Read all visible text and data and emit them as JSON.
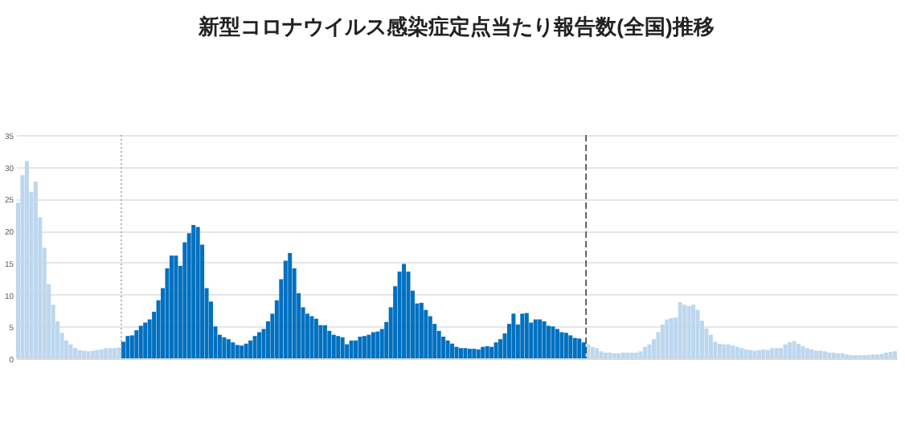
{
  "chart_data": {
    "type": "bar",
    "title": "新型コロナウイルス感染症定点当たり報告数(全国)推移",
    "categories": [
      null,
      null,
      null,
      null,
      null,
      null,
      null,
      null,
      null,
      null,
      null,
      null,
      null,
      null,
      null,
      null,
      null,
      null,
      null,
      null,
      null,
      null,
      null,
      null,
      null,
      null,
      null,
      null,
      null,
      null,
      null,
      null,
      null,
      null,
      null,
      null,
      null,
      null,
      null,
      null,
      null,
      null,
      null,
      null,
      null,
      null,
      null,
      null,
      null,
      null,
      null,
      null,
      null,
      null,
      null,
      null,
      null,
      null,
      null,
      null,
      null,
      null,
      null,
      null,
      null,
      null,
      null,
      null,
      null,
      null,
      null,
      null,
      null,
      null,
      null,
      null,
      null,
      null,
      null,
      null,
      null,
      null,
      null,
      null,
      null,
      null,
      null,
      null,
      null,
      null,
      null,
      null,
      null,
      null,
      null,
      null,
      null,
      null,
      null,
      null,
      null,
      null,
      null,
      null,
      null,
      null,
      null,
      null,
      null,
      null,
      null,
      null,
      null,
      null,
      null,
      null,
      null,
      null,
      null,
      null,
      null,
      null,
      null,
      null,
      null,
      null,
      null,
      null,
      null,
      null,
      null,
      null,
      null,
      null,
      null,
      null,
      null,
      null,
      null,
      null,
      null,
      null,
      null,
      null,
      null,
      null,
      null,
      null,
      null,
      null,
      null,
      null,
      null,
      null,
      null,
      null,
      null,
      null,
      null,
      null,
      null,
      null,
      null,
      null,
      null,
      null,
      null,
      null,
      null,
      null,
      null,
      null,
      null,
      null,
      null,
      null,
      null,
      null,
      null,
      null,
      null,
      null,
      null,
      null,
      null,
      null,
      null,
      null,
      null,
      null,
      null,
      null,
      null,
      null,
      null,
      null,
      null,
      null,
      null,
      null,
      null
    ],
    "values": [
      24.4,
      28.7,
      30.9,
      26.1,
      27.7,
      22.1,
      17.3,
      11.6,
      8.4,
      5.8,
      4.0,
      2.8,
      2.2,
      1.6,
      1.3,
      1.2,
      1.1,
      1.2,
      1.3,
      1.4,
      1.6,
      1.6,
      1.6,
      1.7,
      2.6,
      3.5,
      3.6,
      4.4,
      5.1,
      5.6,
      6.1,
      7.3,
      9.1,
      11.0,
      14.1,
      16.1,
      16.1,
      14.5,
      18.2,
      19.6,
      20.9,
      20.6,
      17.8,
      11.0,
      8.9,
      5.0,
      3.7,
      3.3,
      3.0,
      2.5,
      2.1,
      2.0,
      2.3,
      2.8,
      3.5,
      4.1,
      4.6,
      5.8,
      7.0,
      9.1,
      12.4,
      15.3,
      16.5,
      14.1,
      10.2,
      8.0,
      7.0,
      6.6,
      6.2,
      5.2,
      5.2,
      4.3,
      3.7,
      3.5,
      3.3,
      2.2,
      2.8,
      2.8,
      3.4,
      3.5,
      3.7,
      4.1,
      4.2,
      4.6,
      5.7,
      8.0,
      11.3,
      13.6,
      14.8,
      13.6,
      10.6,
      8.6,
      8.7,
      7.6,
      6.6,
      5.4,
      4.3,
      3.4,
      2.8,
      2.3,
      1.8,
      1.6,
      1.6,
      1.5,
      1.5,
      1.4,
      1.8,
      1.9,
      1.8,
      2.5,
      3.0,
      3.9,
      5.4,
      7.0,
      5.3,
      7.0,
      7.1,
      5.6,
      6.1,
      6.1,
      5.8,
      5.1,
      5.0,
      4.6,
      4.1,
      4.0,
      3.6,
      3.2,
      3.1,
      2.5,
      2.2,
      1.8,
      1.6,
      1.1,
      0.9,
      0.9,
      0.8,
      0.8,
      0.9,
      0.9,
      0.9,
      0.9,
      1.1,
      1.8,
      2.2,
      3.0,
      4.1,
      5.3,
      6.1,
      6.3,
      6.4,
      8.8,
      8.4,
      8.2,
      8.4,
      7.6,
      5.9,
      4.7,
      3.7,
      2.6,
      2.3,
      2.2,
      2.2,
      2.0,
      1.8,
      1.6,
      1.4,
      1.3,
      1.2,
      1.3,
      1.4,
      1.3,
      1.6,
      1.6,
      1.6,
      2.2,
      2.5,
      2.7,
      2.3,
      1.9,
      1.6,
      1.4,
      1.2,
      1.2,
      1.1,
      0.9,
      0.9,
      0.8,
      0.8,
      0.6,
      0.5,
      0.5,
      0.5,
      0.5,
      0.5,
      0.6,
      0.6,
      0.7,
      0.9,
      1.0,
      1.1
    ],
    "colors": [
      "#bdd7ee",
      "#bdd7ee",
      "#bdd7ee",
      "#bdd7ee",
      "#bdd7ee",
      "#bdd7ee",
      "#bdd7ee",
      "#bdd7ee",
      "#bdd7ee",
      "#bdd7ee",
      "#bdd7ee",
      "#bdd7ee",
      "#bdd7ee",
      "#bdd7ee",
      "#bdd7ee",
      "#bdd7ee",
      "#bdd7ee",
      "#bdd7ee",
      "#bdd7ee",
      "#bdd7ee",
      "#bdd7ee",
      "#bdd7ee",
      "#bdd7ee",
      "#bdd7ee",
      "#0070c0",
      "#0070c0",
      "#0070c0",
      "#0070c0",
      "#0070c0",
      "#0070c0",
      "#0070c0",
      "#0070c0",
      "#0070c0",
      "#0070c0",
      "#0070c0",
      "#0070c0",
      "#0070c0",
      "#0070c0",
      "#0070c0",
      "#0070c0",
      "#0070c0",
      "#0070c0",
      "#0070c0",
      "#0070c0",
      "#0070c0",
      "#0070c0",
      "#0070c0",
      "#0070c0",
      "#0070c0",
      "#0070c0",
      "#0070c0",
      "#0070c0",
      "#0070c0",
      "#0070c0",
      "#0070c0",
      "#0070c0",
      "#0070c0",
      "#0070c0",
      "#0070c0",
      "#0070c0",
      "#0070c0",
      "#0070c0",
      "#0070c0",
      "#0070c0",
      "#0070c0",
      "#0070c0",
      "#0070c0",
      "#0070c0",
      "#0070c0",
      "#0070c0",
      "#0070c0",
      "#0070c0",
      "#0070c0",
      "#0070c0",
      "#0070c0",
      "#0070c0",
      "#0070c0",
      "#0070c0",
      "#0070c0",
      "#0070c0",
      "#0070c0",
      "#0070c0",
      "#0070c0",
      "#0070c0",
      "#0070c0",
      "#0070c0",
      "#0070c0",
      "#0070c0",
      "#0070c0",
      "#0070c0",
      "#0070c0",
      "#0070c0",
      "#0070c0",
      "#0070c0",
      "#0070c0",
      "#0070c0",
      "#0070c0",
      "#0070c0",
      "#0070c0",
      "#0070c0",
      "#0070c0",
      "#0070c0",
      "#0070c0",
      "#0070c0",
      "#0070c0",
      "#0070c0",
      "#0070c0",
      "#0070c0",
      "#0070c0",
      "#0070c0",
      "#0070c0",
      "#0070c0",
      "#0070c0",
      "#0070c0",
      "#0070c0",
      "#0070c0",
      "#0070c0",
      "#0070c0",
      "#0070c0",
      "#0070c0",
      "#0070c0",
      "#0070c0",
      "#0070c0",
      "#0070c0",
      "#0070c0",
      "#0070c0",
      "#0070c0",
      "#0070c0",
      "#0070c0",
      "#0070c0",
      "#bdd7ee",
      "#bdd7ee",
      "#bdd7ee",
      "#bdd7ee",
      "#bdd7ee",
      "#bdd7ee",
      "#bdd7ee",
      "#bdd7ee",
      "#bdd7ee",
      "#bdd7ee",
      "#bdd7ee",
      "#bdd7ee",
      "#bdd7ee",
      "#bdd7ee",
      "#bdd7ee",
      "#bdd7ee",
      "#bdd7ee",
      "#bdd7ee",
      "#bdd7ee",
      "#bdd7ee",
      "#bdd7ee",
      "#bdd7ee",
      "#bdd7ee",
      "#bdd7ee",
      "#bdd7ee",
      "#bdd7ee",
      "#bdd7ee",
      "#bdd7ee",
      "#bdd7ee",
      "#bdd7ee",
      "#bdd7ee",
      "#bdd7ee",
      "#bdd7ee",
      "#bdd7ee",
      "#bdd7ee",
      "#bdd7ee",
      "#bdd7ee",
      "#bdd7ee",
      "#bdd7ee",
      "#bdd7ee",
      "#bdd7ee",
      "#bdd7ee",
      "#bdd7ee",
      "#bdd7ee",
      "#bdd7ee",
      "#bdd7ee",
      "#bdd7ee",
      "#bdd7ee",
      "#bdd7ee",
      "#bdd7ee",
      "#bdd7ee",
      "#bdd7ee",
      "#bdd7ee",
      "#bdd7ee",
      "#bdd7ee",
      "#bdd7ee",
      "#bdd7ee",
      "#bdd7ee",
      "#bdd7ee",
      "#bdd7ee",
      "#bdd7ee",
      "#bdd7ee",
      "#bdd7ee",
      "#bdd7ee",
      "#bdd7ee",
      "#bdd7ee",
      "#bdd7ee",
      "#bdd7ee",
      "#bdd7ee",
      "#bdd7ee",
      "#bdd7ee"
    ],
    "ylim": [
      0,
      35
    ],
    "yticks": [
      0,
      5,
      10,
      15,
      20,
      25,
      30,
      35
    ],
    "grid": "y"
  }
}
